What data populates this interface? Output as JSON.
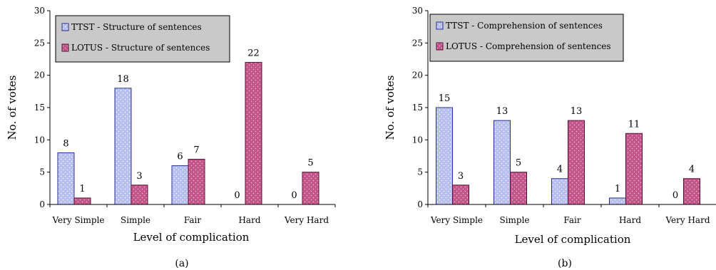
{
  "colors": {
    "series_1_fill": "#b7bff2",
    "series_1_stroke": "#2a2f8f",
    "series_2_fill": "#c2558a",
    "series_2_stroke": "#5c0f35",
    "legend_bg": "#c9c9c9"
  },
  "chart_data": [
    {
      "type": "bar",
      "caption": "(a)",
      "ylabel": "No. of votes",
      "xlabel": "Level of complication",
      "ylim": [
        0,
        30
      ],
      "yticks": [
        0,
        5,
        10,
        15,
        20,
        25,
        30
      ],
      "categories": [
        "Very Simple",
        "Simple",
        "Fair",
        "Hard",
        "Very Hard"
      ],
      "series": [
        {
          "name": "TTST -  Structure of sentences",
          "values": [
            8,
            18,
            6,
            0,
            0
          ]
        },
        {
          "name": "LOTUS -  Structure of sentences",
          "values": [
            1,
            3,
            7,
            22,
            5
          ]
        }
      ],
      "legend_position": "top-left",
      "grid": false
    },
    {
      "type": "bar",
      "caption": "(b)",
      "ylabel": "No. of votes",
      "xlabel": "Level of complication",
      "ylim": [
        0,
        30
      ],
      "yticks": [
        0,
        5,
        10,
        15,
        20,
        25,
        30
      ],
      "categories": [
        "Very Simple",
        "Simple",
        "Fair",
        "Hard",
        "Very Hard"
      ],
      "series": [
        {
          "name": "TTST -  Comprehension of sentences",
          "values": [
            15,
            13,
            4,
            1,
            0
          ]
        },
        {
          "name": "LOTUS -  Comprehension of sentences",
          "values": [
            3,
            5,
            13,
            11,
            4
          ]
        }
      ],
      "legend_position": "top-left",
      "grid": false
    }
  ]
}
